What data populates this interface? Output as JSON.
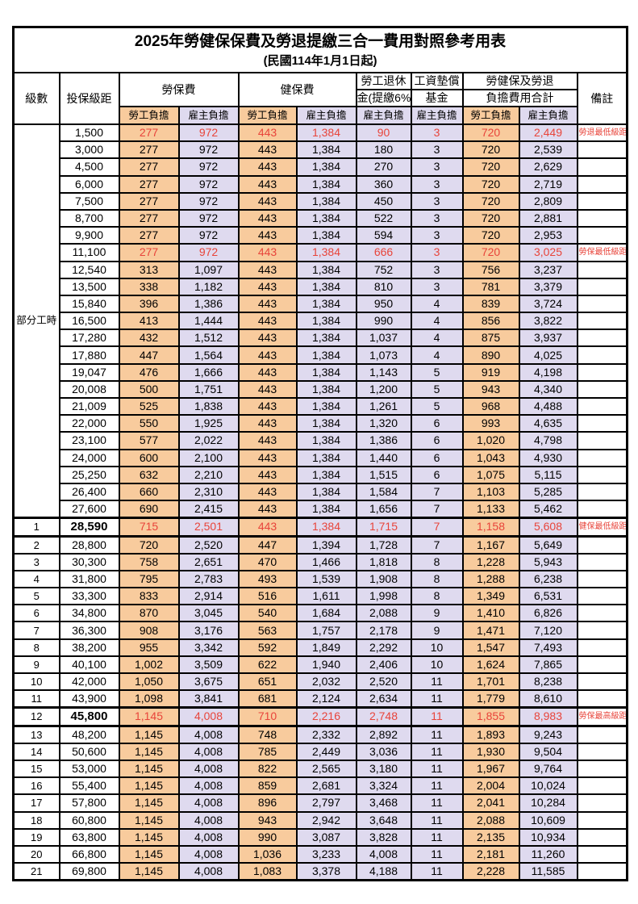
{
  "title": "2025年勞健保保費及勞退提繳三合一費用對照參考用表",
  "subtitle": "(民國114年1月1日起)",
  "colors": {
    "employee_bg": "#F8CB9D",
    "employer_bg": "#DFDAEF",
    "highlight_text": "#E8443A",
    "border": "#000000"
  },
  "header": {
    "level": "級數",
    "bracket": "投保級距",
    "labor_insurance": "勞保費",
    "health_insurance": "健保費",
    "pension_line1": "勞工退休",
    "pension_line2": "金(提繳6%)",
    "wage_fund_line1": "工資墊償",
    "wage_fund_line2": "基金",
    "total_line1": "勞健保及勞退",
    "total_line2": "負擔費用合計",
    "remark": "備註",
    "employee_share": "勞工負擔",
    "employer_share": "雇主負擔"
  },
  "part_time_label": "部分工時",
  "rows": [
    {
      "level": "",
      "part": true,
      "bracket": "1,500",
      "v": [
        "277",
        "972",
        "443",
        "1,384",
        "90",
        "3",
        "720",
        "2,449"
      ],
      "remark": "勞退最低級距",
      "red": true,
      "boldBracket": false
    },
    {
      "level": "",
      "part": true,
      "bracket": "3,000",
      "v": [
        "277",
        "972",
        "443",
        "1,384",
        "180",
        "3",
        "720",
        "2,539"
      ],
      "remark": "",
      "red": false,
      "boldBracket": false
    },
    {
      "level": "",
      "part": true,
      "bracket": "4,500",
      "v": [
        "277",
        "972",
        "443",
        "1,384",
        "270",
        "3",
        "720",
        "2,629"
      ],
      "remark": "",
      "red": false,
      "boldBracket": false
    },
    {
      "level": "",
      "part": true,
      "bracket": "6,000",
      "v": [
        "277",
        "972",
        "443",
        "1,384",
        "360",
        "3",
        "720",
        "2,719"
      ],
      "remark": "",
      "red": false,
      "boldBracket": false
    },
    {
      "level": "",
      "part": true,
      "bracket": "7,500",
      "v": [
        "277",
        "972",
        "443",
        "1,384",
        "450",
        "3",
        "720",
        "2,809"
      ],
      "remark": "",
      "red": false,
      "boldBracket": false
    },
    {
      "level": "",
      "part": true,
      "bracket": "8,700",
      "v": [
        "277",
        "972",
        "443",
        "1,384",
        "522",
        "3",
        "720",
        "2,881"
      ],
      "remark": "",
      "red": false,
      "boldBracket": false
    },
    {
      "level": "",
      "part": true,
      "bracket": "9,900",
      "v": [
        "277",
        "972",
        "443",
        "1,384",
        "594",
        "3",
        "720",
        "2,953"
      ],
      "remark": "",
      "red": false,
      "boldBracket": false
    },
    {
      "level": "",
      "part": true,
      "bracket": "11,100",
      "v": [
        "277",
        "972",
        "443",
        "1,384",
        "666",
        "3",
        "720",
        "3,025"
      ],
      "remark": "勞保最低級距",
      "red": true,
      "boldBracket": false
    },
    {
      "level": "",
      "part": true,
      "bracket": "12,540",
      "v": [
        "313",
        "1,097",
        "443",
        "1,384",
        "752",
        "3",
        "756",
        "3,237"
      ],
      "remark": "",
      "red": false,
      "boldBracket": false
    },
    {
      "level": "",
      "part": true,
      "bracket": "13,500",
      "v": [
        "338",
        "1,182",
        "443",
        "1,384",
        "810",
        "3",
        "781",
        "3,379"
      ],
      "remark": "",
      "red": false,
      "boldBracket": false
    },
    {
      "level": "",
      "part": true,
      "bracket": "15,840",
      "v": [
        "396",
        "1,386",
        "443",
        "1,384",
        "950",
        "4",
        "839",
        "3,724"
      ],
      "remark": "",
      "red": false,
      "boldBracket": false
    },
    {
      "level": "",
      "part": true,
      "bracket": "16,500",
      "v": [
        "413",
        "1,444",
        "443",
        "1,384",
        "990",
        "4",
        "856",
        "3,822"
      ],
      "remark": "",
      "red": false,
      "boldBracket": false
    },
    {
      "level": "",
      "part": true,
      "bracket": "17,280",
      "v": [
        "432",
        "1,512",
        "443",
        "1,384",
        "1,037",
        "4",
        "875",
        "3,937"
      ],
      "remark": "",
      "red": false,
      "boldBracket": false
    },
    {
      "level": "",
      "part": true,
      "bracket": "17,880",
      "v": [
        "447",
        "1,564",
        "443",
        "1,384",
        "1,073",
        "4",
        "890",
        "4,025"
      ],
      "remark": "",
      "red": false,
      "boldBracket": false
    },
    {
      "level": "",
      "part": true,
      "bracket": "19,047",
      "v": [
        "476",
        "1,666",
        "443",
        "1,384",
        "1,143",
        "5",
        "919",
        "4,198"
      ],
      "remark": "",
      "red": false,
      "boldBracket": false
    },
    {
      "level": "",
      "part": true,
      "bracket": "20,008",
      "v": [
        "500",
        "1,751",
        "443",
        "1,384",
        "1,200",
        "5",
        "943",
        "4,340"
      ],
      "remark": "",
      "red": false,
      "boldBracket": false
    },
    {
      "level": "",
      "part": true,
      "bracket": "21,009",
      "v": [
        "525",
        "1,838",
        "443",
        "1,384",
        "1,261",
        "5",
        "968",
        "4,488"
      ],
      "remark": "",
      "red": false,
      "boldBracket": false
    },
    {
      "level": "",
      "part": true,
      "bracket": "22,000",
      "v": [
        "550",
        "1,925",
        "443",
        "1,384",
        "1,320",
        "6",
        "993",
        "4,635"
      ],
      "remark": "",
      "red": false,
      "boldBracket": false
    },
    {
      "level": "",
      "part": true,
      "bracket": "23,100",
      "v": [
        "577",
        "2,022",
        "443",
        "1,384",
        "1,386",
        "6",
        "1,020",
        "4,798"
      ],
      "remark": "",
      "red": false,
      "boldBracket": false
    },
    {
      "level": "",
      "part": true,
      "bracket": "24,000",
      "v": [
        "600",
        "2,100",
        "443",
        "1,384",
        "1,440",
        "6",
        "1,043",
        "4,930"
      ],
      "remark": "",
      "red": false,
      "boldBracket": false
    },
    {
      "level": "",
      "part": true,
      "bracket": "25,250",
      "v": [
        "632",
        "2,210",
        "443",
        "1,384",
        "1,515",
        "6",
        "1,075",
        "5,115"
      ],
      "remark": "",
      "red": false,
      "boldBracket": false
    },
    {
      "level": "",
      "part": true,
      "bracket": "26,400",
      "v": [
        "660",
        "2,310",
        "443",
        "1,384",
        "1,584",
        "7",
        "1,103",
        "5,285"
      ],
      "remark": "",
      "red": false,
      "boldBracket": false
    },
    {
      "level": "",
      "part": true,
      "bracket": "27,600",
      "v": [
        "690",
        "2,415",
        "443",
        "1,384",
        "1,656",
        "7",
        "1,133",
        "5,462"
      ],
      "remark": "",
      "red": false,
      "boldBracket": false
    },
    {
      "level": "1",
      "part": false,
      "bracket": "28,590",
      "v": [
        "715",
        "2,501",
        "443",
        "1,384",
        "1,715",
        "7",
        "1,158",
        "5,608"
      ],
      "remark": "健保最低級距",
      "red": true,
      "boldBracket": true,
      "sepTop": true,
      "sepBottom": true
    },
    {
      "level": "2",
      "part": false,
      "bracket": "28,800",
      "v": [
        "720",
        "2,520",
        "447",
        "1,394",
        "1,728",
        "7",
        "1,167",
        "5,649"
      ],
      "remark": "",
      "red": false,
      "boldBracket": false
    },
    {
      "level": "3",
      "part": false,
      "bracket": "30,300",
      "v": [
        "758",
        "2,651",
        "470",
        "1,466",
        "1,818",
        "8",
        "1,228",
        "5,943"
      ],
      "remark": "",
      "red": false,
      "boldBracket": false
    },
    {
      "level": "4",
      "part": false,
      "bracket": "31,800",
      "v": [
        "795",
        "2,783",
        "493",
        "1,539",
        "1,908",
        "8",
        "1,288",
        "6,238"
      ],
      "remark": "",
      "red": false,
      "boldBracket": false
    },
    {
      "level": "5",
      "part": false,
      "bracket": "33,300",
      "v": [
        "833",
        "2,914",
        "516",
        "1,611",
        "1,998",
        "8",
        "1,349",
        "6,531"
      ],
      "remark": "",
      "red": false,
      "boldBracket": false
    },
    {
      "level": "6",
      "part": false,
      "bracket": "34,800",
      "v": [
        "870",
        "3,045",
        "540",
        "1,684",
        "2,088",
        "9",
        "1,410",
        "6,826"
      ],
      "remark": "",
      "red": false,
      "boldBracket": false
    },
    {
      "level": "7",
      "part": false,
      "bracket": "36,300",
      "v": [
        "908",
        "3,176",
        "563",
        "1,757",
        "2,178",
        "9",
        "1,471",
        "7,120"
      ],
      "remark": "",
      "red": false,
      "boldBracket": false
    },
    {
      "level": "8",
      "part": false,
      "bracket": "38,200",
      "v": [
        "955",
        "3,342",
        "592",
        "1,849",
        "2,292",
        "10",
        "1,547",
        "7,493"
      ],
      "remark": "",
      "red": false,
      "boldBracket": false
    },
    {
      "level": "9",
      "part": false,
      "bracket": "40,100",
      "v": [
        "1,002",
        "3,509",
        "622",
        "1,940",
        "2,406",
        "10",
        "1,624",
        "7,865"
      ],
      "remark": "",
      "red": false,
      "boldBracket": false
    },
    {
      "level": "10",
      "part": false,
      "bracket": "42,000",
      "v": [
        "1,050",
        "3,675",
        "651",
        "2,032",
        "2,520",
        "11",
        "1,701",
        "8,238"
      ],
      "remark": "",
      "red": false,
      "boldBracket": false
    },
    {
      "level": "11",
      "part": false,
      "bracket": "43,900",
      "v": [
        "1,098",
        "3,841",
        "681",
        "2,124",
        "2,634",
        "11",
        "1,779",
        "8,610"
      ],
      "remark": "",
      "red": false,
      "boldBracket": false
    },
    {
      "level": "12",
      "part": false,
      "bracket": "45,800",
      "v": [
        "1,145",
        "4,008",
        "710",
        "2,216",
        "2,748",
        "11",
        "1,855",
        "8,983"
      ],
      "remark": "勞保最高級距",
      "red": true,
      "boldBracket": true,
      "sepTop": true,
      "sepBottom": true
    },
    {
      "level": "13",
      "part": false,
      "bracket": "48,200",
      "v": [
        "1,145",
        "4,008",
        "748",
        "2,332",
        "2,892",
        "11",
        "1,893",
        "9,243"
      ],
      "remark": "",
      "red": false,
      "boldBracket": false
    },
    {
      "level": "14",
      "part": false,
      "bracket": "50,600",
      "v": [
        "1,145",
        "4,008",
        "785",
        "2,449",
        "3,036",
        "11",
        "1,930",
        "9,504"
      ],
      "remark": "",
      "red": false,
      "boldBracket": false
    },
    {
      "level": "15",
      "part": false,
      "bracket": "53,000",
      "v": [
        "1,145",
        "4,008",
        "822",
        "2,565",
        "3,180",
        "11",
        "1,967",
        "9,764"
      ],
      "remark": "",
      "red": false,
      "boldBracket": false
    },
    {
      "level": "16",
      "part": false,
      "bracket": "55,400",
      "v": [
        "1,145",
        "4,008",
        "859",
        "2,681",
        "3,324",
        "11",
        "2,004",
        "10,024"
      ],
      "remark": "",
      "red": false,
      "boldBracket": false
    },
    {
      "level": "17",
      "part": false,
      "bracket": "57,800",
      "v": [
        "1,145",
        "4,008",
        "896",
        "2,797",
        "3,468",
        "11",
        "2,041",
        "10,284"
      ],
      "remark": "",
      "red": false,
      "boldBracket": false
    },
    {
      "level": "18",
      "part": false,
      "bracket": "60,800",
      "v": [
        "1,145",
        "4,008",
        "943",
        "2,942",
        "3,648",
        "11",
        "2,088",
        "10,609"
      ],
      "remark": "",
      "red": false,
      "boldBracket": false
    },
    {
      "level": "19",
      "part": false,
      "bracket": "63,800",
      "v": [
        "1,145",
        "4,008",
        "990",
        "3,087",
        "3,828",
        "11",
        "2,135",
        "10,934"
      ],
      "remark": "",
      "red": false,
      "boldBracket": false
    },
    {
      "level": "20",
      "part": false,
      "bracket": "66,800",
      "v": [
        "1,145",
        "4,008",
        "1,036",
        "3,233",
        "4,008",
        "11",
        "2,181",
        "11,260"
      ],
      "remark": "",
      "red": false,
      "boldBracket": false
    },
    {
      "level": "21",
      "part": false,
      "bracket": "69,800",
      "v": [
        "1,145",
        "4,008",
        "1,083",
        "3,378",
        "4,188",
        "11",
        "2,228",
        "11,585"
      ],
      "remark": "",
      "red": false,
      "boldBracket": false
    }
  ]
}
